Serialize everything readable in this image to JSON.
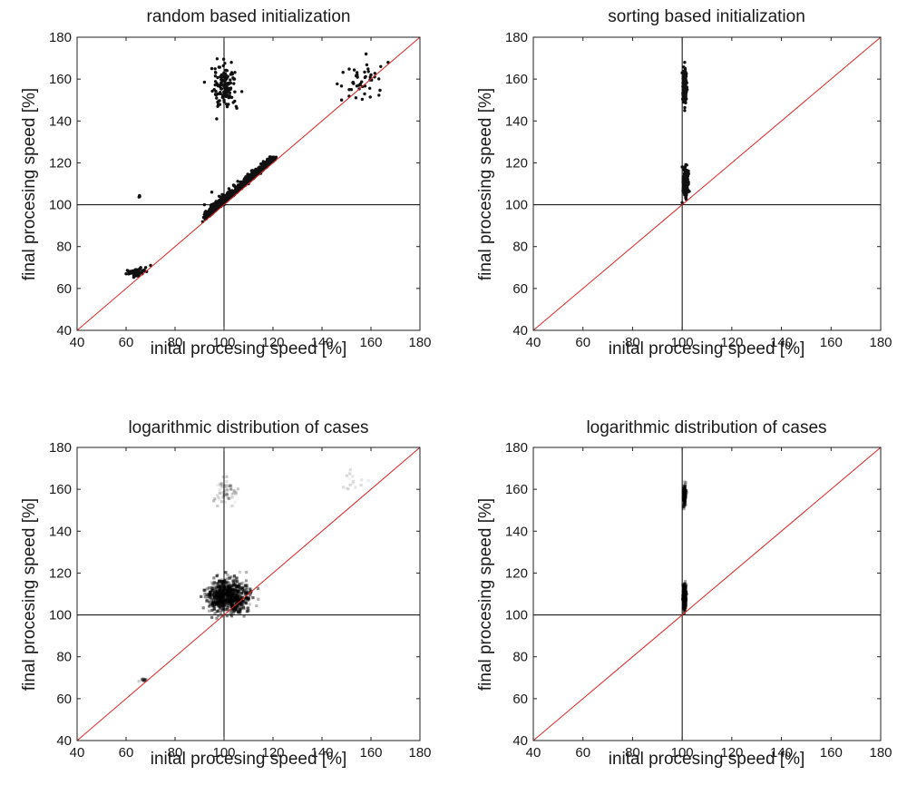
{
  "figure": {
    "panels": [
      {
        "title": "random based initialization",
        "xlabel": "inital procesing speed [%]",
        "ylabel": "final procesing speed [%]"
      },
      {
        "title": "sorting based initialization",
        "xlabel": "inital procesing speed [%]",
        "ylabel": "final procesing speed [%]"
      },
      {
        "title": "logarithmic distribution of cases",
        "xlabel": "inital procesing speed [%]",
        "ylabel": "final procesing speed [%]"
      },
      {
        "title": "logarithmic distribution of cases",
        "xlabel": "inital procesing speed [%]",
        "ylabel": "final procesing speed [%]"
      }
    ]
  },
  "chart_data": [
    {
      "type": "scatter",
      "title": "random based initialization",
      "xlabel": "inital procesing speed [%]",
      "ylabel": "final procesing speed [%]",
      "xlim": [
        40,
        180
      ],
      "ylim": [
        40,
        180
      ],
      "xticks": [
        "40",
        "60",
        "80",
        "100",
        "120",
        "140",
        "160",
        "180"
      ],
      "yticks": [
        "40",
        "60",
        "80",
        "100",
        "120",
        "140",
        "160",
        "180"
      ],
      "reference_lines": {
        "diagonal": "y = x",
        "vertical_x": 100,
        "horizontal_y": 100
      },
      "colors": {
        "points": "#111111",
        "diagonal": "#dd2222",
        "reference": "#000000"
      },
      "clusters": [
        {
          "x_range": [
            88,
            120
          ],
          "y_range": [
            95,
            123
          ],
          "approx_points": 900,
          "density": "very dense, along diagonal"
        },
        {
          "x_range": [
            92,
            108
          ],
          "y_range": [
            141,
            174
          ],
          "approx_points": 130
        },
        {
          "x_range": [
            144,
            167
          ],
          "y_range": [
            147,
            172
          ],
          "approx_points": 40
        },
        {
          "x_range": [
            58,
            70
          ],
          "y_range": [
            64,
            71
          ],
          "approx_points": 50
        },
        {
          "x_range": [
            65,
            66
          ],
          "y_range": [
            103,
            105
          ],
          "approx_points": 3
        }
      ],
      "x": [
        100,
        102,
        105,
        110,
        115,
        98,
        95,
        92,
        100,
        102,
        96,
        99,
        101,
        104,
        95,
        97,
        100,
        103,
        148,
        152,
        155,
        158,
        160,
        164,
        167,
        60,
        62,
        64,
        66,
        68,
        70
      ],
      "y": [
        100,
        103,
        106,
        110,
        115,
        104,
        106,
        100,
        152,
        158,
        155,
        162,
        148,
        160,
        165,
        141,
        150,
        168,
        150,
        155,
        157,
        172,
        162,
        166,
        168,
        67,
        68,
        69,
        70,
        70,
        71
      ]
    },
    {
      "type": "scatter",
      "title": "sorting based initialization",
      "xlabel": "inital procesing speed [%]",
      "ylabel": "final procesing speed [%]",
      "xlim": [
        40,
        180
      ],
      "ylim": [
        40,
        180
      ],
      "xticks": [
        "40",
        "60",
        "80",
        "100",
        "120",
        "140",
        "160",
        "180"
      ],
      "yticks": [
        "40",
        "60",
        "80",
        "100",
        "120",
        "140",
        "160",
        "180"
      ],
      "reference_lines": {
        "diagonal": "y = x",
        "vertical_x": 100,
        "horizontal_y": 100
      },
      "colors": {
        "points": "#111111",
        "diagonal": "#dd2222",
        "reference": "#000000"
      },
      "clusters": [
        {
          "x_range": [
            100,
            103
          ],
          "y_range": [
            101,
            121
          ],
          "approx_points": 300
        },
        {
          "x_range": [
            100,
            102
          ],
          "y_range": [
            145,
            168
          ],
          "approx_points": 250
        }
      ],
      "x": [
        100,
        101,
        102,
        100,
        101,
        102,
        100,
        101
      ],
      "y": [
        101,
        105,
        110,
        118,
        145,
        155,
        163,
        168
      ]
    },
    {
      "type": "heatmap",
      "title": "logarithmic distribution of cases",
      "xlabel": "inital procesing speed [%]",
      "ylabel": "final procesing speed [%]",
      "xlim": [
        40,
        180
      ],
      "ylim": [
        40,
        180
      ],
      "xticks": [
        "40",
        "60",
        "80",
        "100",
        "120",
        "140",
        "160",
        "180"
      ],
      "yticks": [
        "40",
        "60",
        "80",
        "100",
        "120",
        "140",
        "160",
        "180"
      ],
      "reference_lines": {
        "diagonal": "y = x",
        "vertical_x": 100,
        "horizontal_y": 100
      },
      "colors": {
        "density": "#000000",
        "diagonal": "#dd2222",
        "reference": "#000000"
      },
      "clusters": [
        {
          "x_range": [
            88,
            116
          ],
          "y_range": [
            96,
            122
          ],
          "approx_points": 700,
          "intensity": 0.7
        },
        {
          "x_range": [
            93,
            108
          ],
          "y_range": [
            150,
            168
          ],
          "approx_points": 60,
          "intensity": 0.25
        },
        {
          "x_range": [
            147,
            160
          ],
          "y_range": [
            155,
            173
          ],
          "approx_points": 15,
          "intensity": 0.15
        },
        {
          "x_range": [
            64,
            70
          ],
          "y_range": [
            68,
            70
          ],
          "approx_points": 15,
          "intensity": 0.35
        }
      ]
    },
    {
      "type": "heatmap",
      "title": "logarithmic distribution of cases",
      "xlabel": "inital procesing speed [%]",
      "ylabel": "final procesing speed [%]",
      "xlim": [
        40,
        180
      ],
      "ylim": [
        40,
        180
      ],
      "xticks": [
        "40",
        "60",
        "80",
        "100",
        "120",
        "140",
        "160",
        "180"
      ],
      "yticks": [
        "40",
        "60",
        "80",
        "100",
        "120",
        "140",
        "160",
        "180"
      ],
      "reference_lines": {
        "diagonal": "y = x",
        "vertical_x": 100,
        "horizontal_y": 100
      },
      "colors": {
        "density": "#000000",
        "diagonal": "#dd2222",
        "reference": "#000000"
      },
      "clusters": [
        {
          "x_range": [
            100,
            102
          ],
          "y_range": [
            100,
            117
          ],
          "approx_points": 260,
          "intensity": 0.75
        },
        {
          "x_range": [
            100,
            102
          ],
          "y_range": [
            148,
            166
          ],
          "approx_points": 160,
          "intensity": 0.45
        }
      ]
    }
  ]
}
